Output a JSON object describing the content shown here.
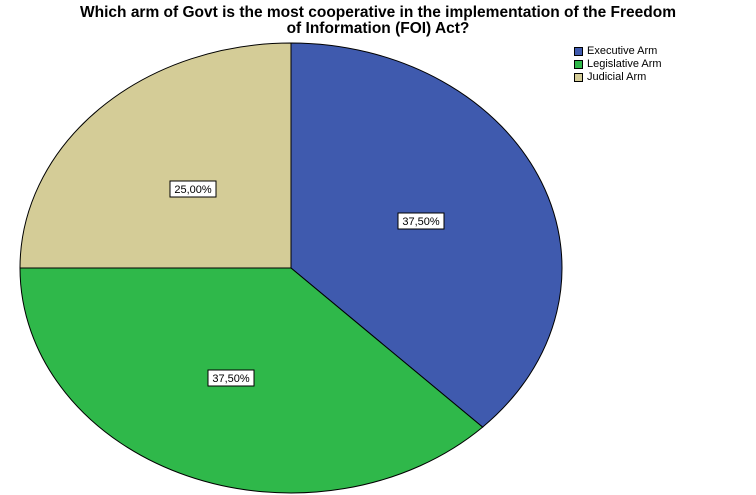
{
  "chart_data": {
    "type": "pie",
    "title": "Which arm of Govt is the most cooperative in the implementation of the Freedom\nof Information (FOI) Act?",
    "categories": [
      "Executive Arm",
      "Legislative Arm",
      "Judicial Arm"
    ],
    "values": [
      37.5,
      37.5,
      25.0
    ],
    "value_labels": [
      "37,50%",
      "37,50%",
      "25,00%"
    ],
    "colors": [
      "#3f5aae",
      "#2fb84a",
      "#d4cc97"
    ],
    "legend_position": "top-right",
    "start": "12 o'clock",
    "direction": "clockwise"
  }
}
